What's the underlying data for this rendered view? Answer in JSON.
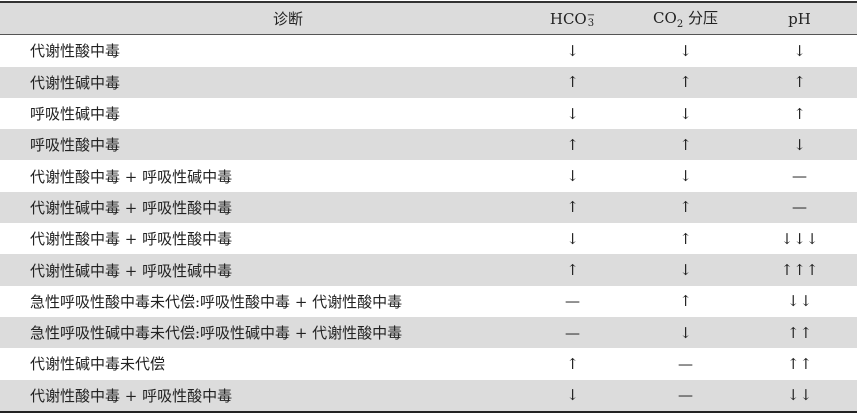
{
  "header": {
    "diagnosis": "诊断",
    "hco3_base": "HCO",
    "hco3_sup": "−",
    "hco3_sub": "3",
    "co2_base": "CO",
    "co2_sub": "2",
    "co2_suffix": " 分压",
    "ph": "pH"
  },
  "rows": [
    {
      "diagnosis": "代谢性酸中毒",
      "hco3": "↓",
      "co2": "↓",
      "ph": "↓"
    },
    {
      "diagnosis": "代谢性碱中毒",
      "hco3": "↑",
      "co2": "↑",
      "ph": "↑"
    },
    {
      "diagnosis": "呼吸性碱中毒",
      "hco3": "↓",
      "co2": "↓",
      "ph": "↑"
    },
    {
      "diagnosis": "呼吸性酸中毒",
      "hco3": "↑",
      "co2": "↑",
      "ph": "↓"
    },
    {
      "diagnosis": "代谢性酸中毒 + 呼吸性碱中毒",
      "hco3": "↓",
      "co2": "↓",
      "ph": "—"
    },
    {
      "diagnosis": "代谢性碱中毒 + 呼吸性酸中毒",
      "hco3": "↑",
      "co2": "↑",
      "ph": "—"
    },
    {
      "diagnosis": "代谢性酸中毒 + 呼吸性酸中毒",
      "hco3": "↓",
      "co2": "↑",
      "ph": "↓↓↓"
    },
    {
      "diagnosis": "代谢性碱中毒 + 呼吸性碱中毒",
      "hco3": "↑",
      "co2": "↓",
      "ph": "↑↑↑"
    },
    {
      "diagnosis": "急性呼吸性酸中毒未代偿:呼吸性酸中毒 + 代谢性酸中毒",
      "hco3": "—",
      "co2": "↑",
      "ph": "↓↓"
    },
    {
      "diagnosis": "急性呼吸性碱中毒未代偿:呼吸性碱中毒 + 代谢性酸中毒",
      "hco3": "—",
      "co2": "↓",
      "ph": "↑↑"
    },
    {
      "diagnosis": "代谢性碱中毒未代偿",
      "hco3": "↑",
      "co2": "—",
      "ph": "↑↑"
    },
    {
      "diagnosis": "代谢性酸中毒 + 呼吸性酸中毒",
      "hco3": "↓",
      "co2": "—",
      "ph": "↓↓"
    }
  ]
}
